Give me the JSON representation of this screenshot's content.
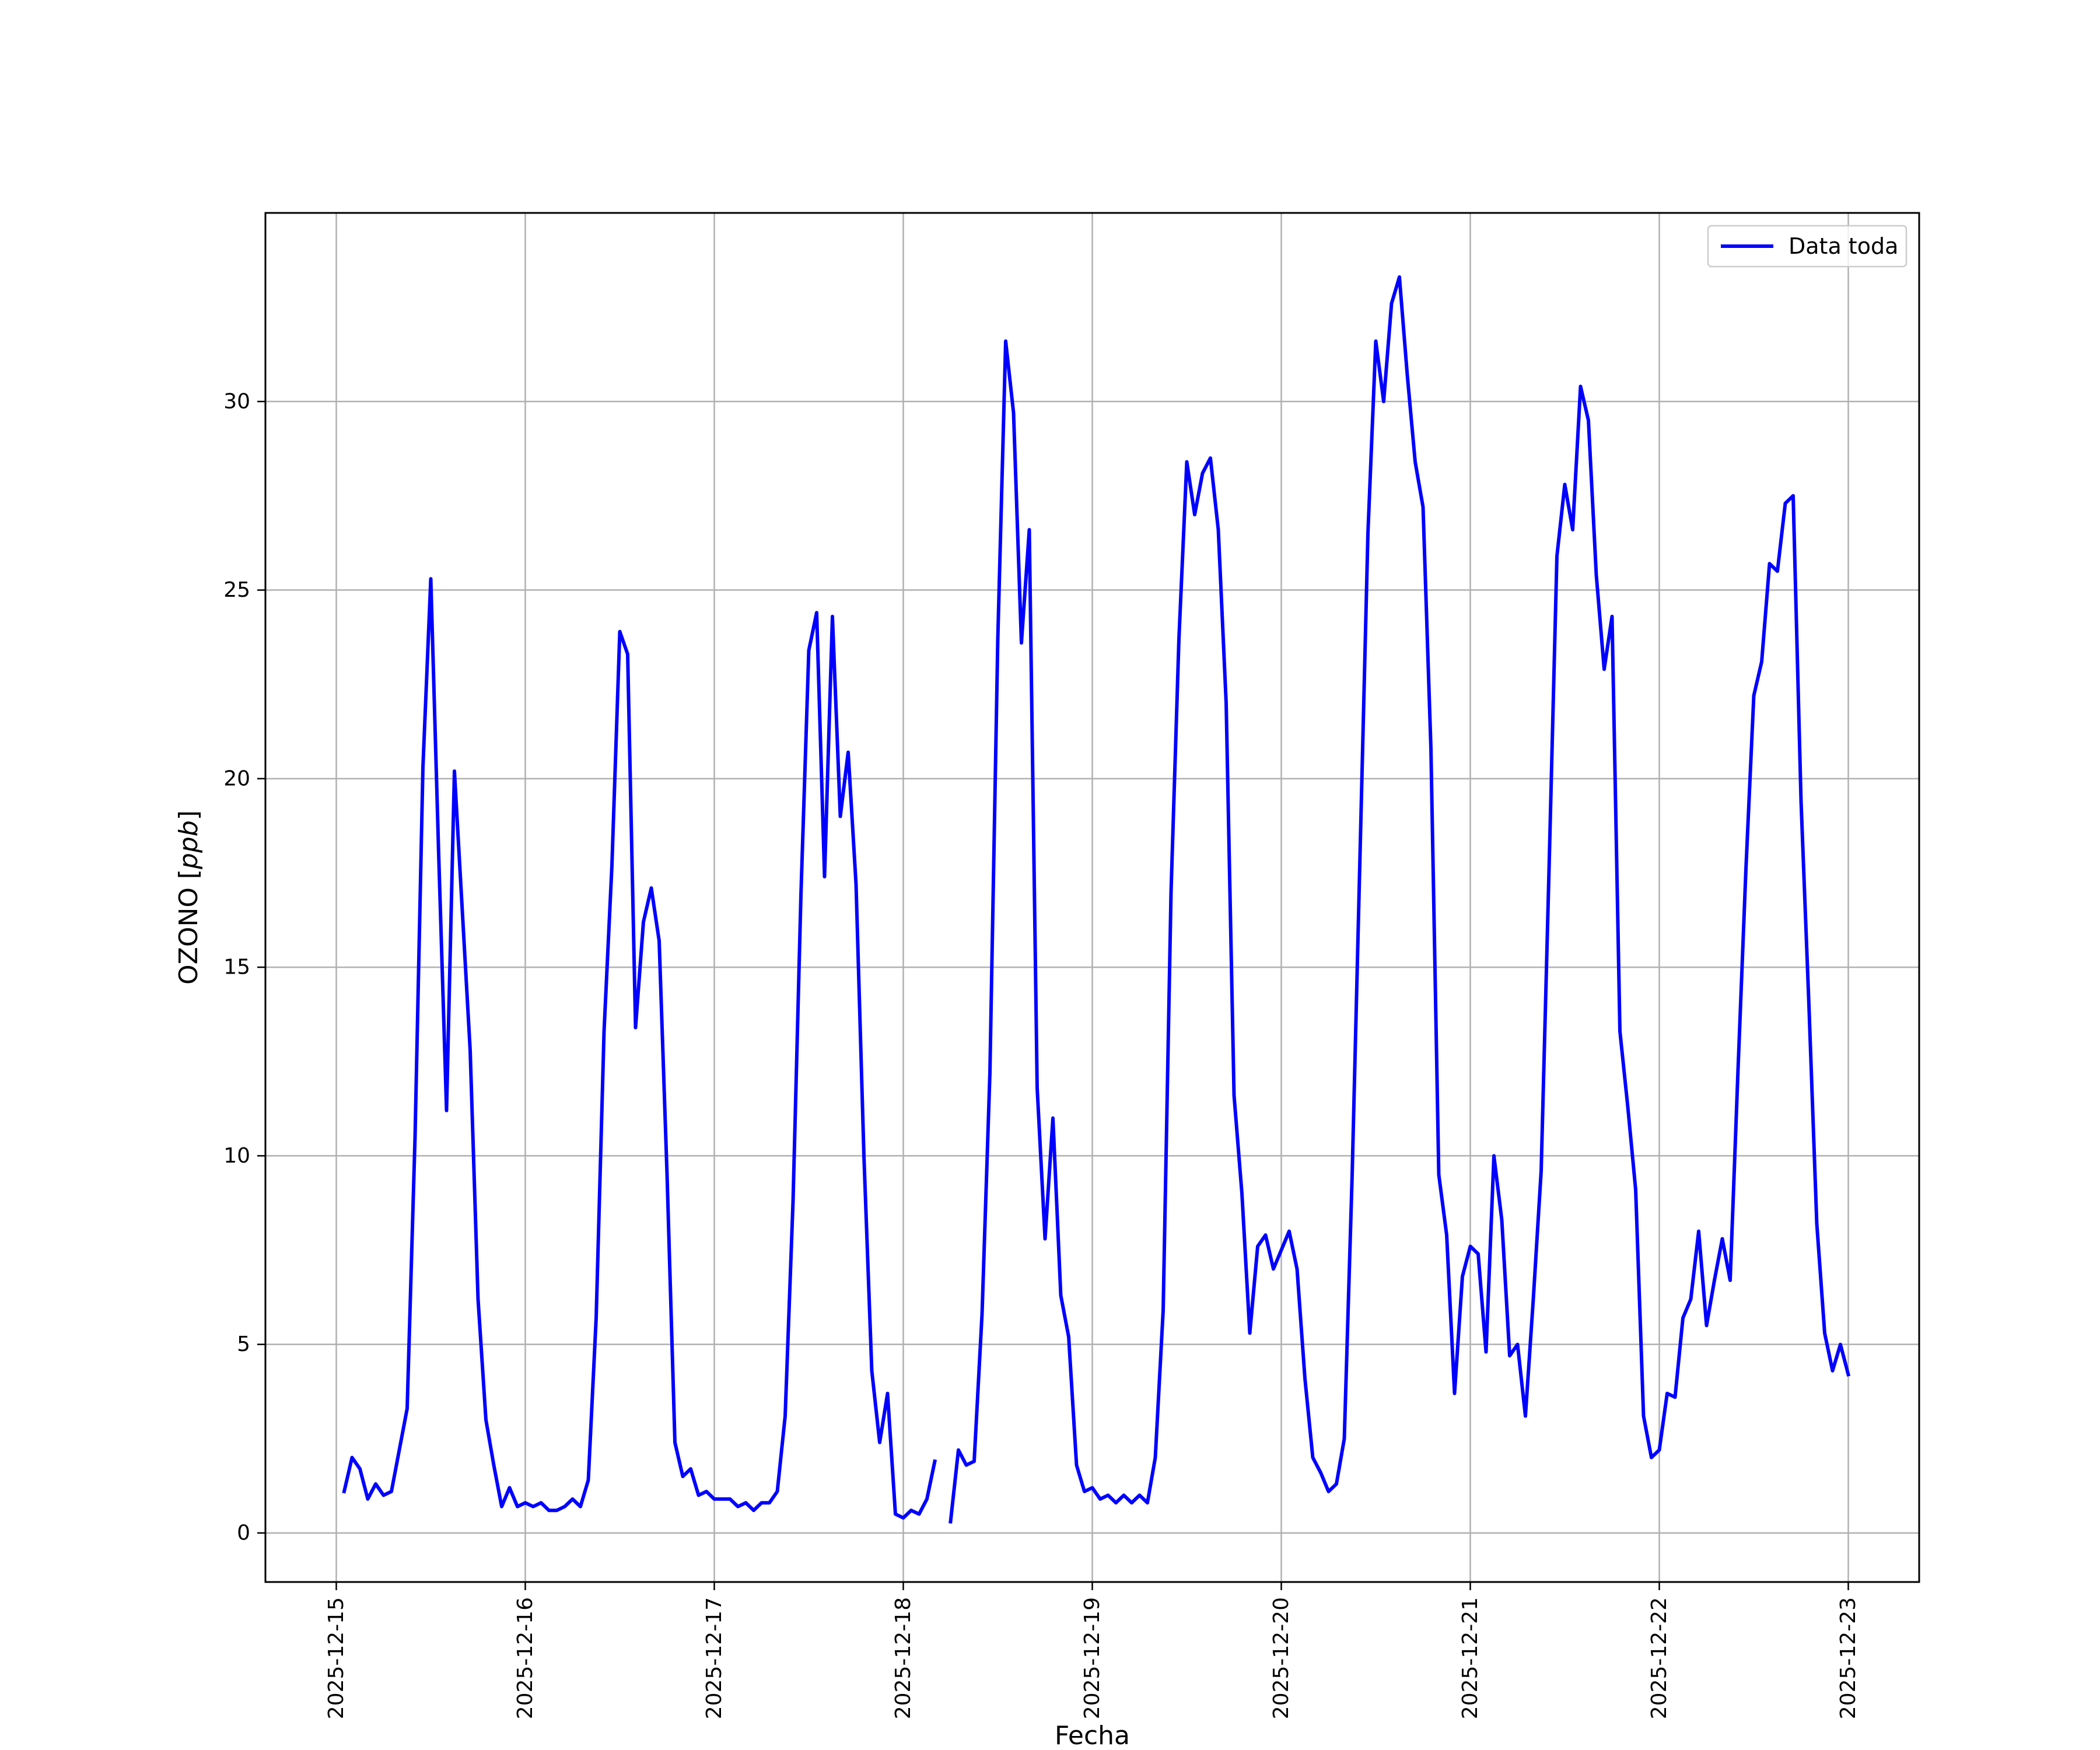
{
  "chart_data": {
    "type": "line",
    "title": "",
    "xlabel": "Fecha",
    "ylabel": "OZONO [ppb]",
    "ylabel_parts": {
      "main": "OZONO [",
      "unit": "ppb",
      "close": "]"
    },
    "xlim": [
      "2025-12-14 15:00",
      "2025-12-23 09:00"
    ],
    "ylim": [
      -1.3,
      35
    ],
    "grid": true,
    "legend_position": "top-right",
    "line_color": "#0000ff",
    "x_ticks": [
      "2025-12-15",
      "2025-12-16",
      "2025-12-17",
      "2025-12-18",
      "2025-12-19",
      "2025-12-20",
      "2025-12-21",
      "2025-12-22",
      "2025-12-23"
    ],
    "y_ticks": [
      0,
      5,
      10,
      15,
      20,
      25,
      30
    ],
    "series": [
      {
        "name": "Data toda",
        "segments": [
          {
            "x": [
              "2025-12-15 01:00",
              "2025-12-15 02:00",
              "2025-12-15 03:00",
              "2025-12-15 04:00",
              "2025-12-15 05:00",
              "2025-12-15 06:00",
              "2025-12-15 07:00",
              "2025-12-15 08:00",
              "2025-12-15 09:00",
              "2025-12-15 10:00",
              "2025-12-15 11:00",
              "2025-12-15 12:00",
              "2025-12-15 13:00",
              "2025-12-15 14:00",
              "2025-12-15 15:00",
              "2025-12-15 16:00",
              "2025-12-15 17:00",
              "2025-12-15 18:00",
              "2025-12-15 19:00",
              "2025-12-15 20:00",
              "2025-12-15 21:00",
              "2025-12-15 22:00",
              "2025-12-15 23:00",
              "2025-12-16 00:00",
              "2025-12-16 01:00",
              "2025-12-16 02:00",
              "2025-12-16 03:00",
              "2025-12-16 04:00",
              "2025-12-16 05:00",
              "2025-12-16 06:00",
              "2025-12-16 07:00",
              "2025-12-16 08:00",
              "2025-12-16 09:00",
              "2025-12-16 10:00",
              "2025-12-16 11:00",
              "2025-12-16 12:00",
              "2025-12-16 13:00",
              "2025-12-16 14:00",
              "2025-12-16 15:00",
              "2025-12-16 16:00",
              "2025-12-16 17:00",
              "2025-12-16 18:00",
              "2025-12-16 19:00",
              "2025-12-16 20:00",
              "2025-12-16 21:00",
              "2025-12-16 22:00",
              "2025-12-16 23:00",
              "2025-12-17 00:00",
              "2025-12-17 01:00",
              "2025-12-17 02:00",
              "2025-12-17 03:00",
              "2025-12-17 04:00",
              "2025-12-17 05:00",
              "2025-12-17 06:00",
              "2025-12-17 07:00",
              "2025-12-17 08:00",
              "2025-12-17 09:00",
              "2025-12-17 10:00",
              "2025-12-17 11:00",
              "2025-12-17 12:00",
              "2025-12-17 13:00",
              "2025-12-17 14:00",
              "2025-12-17 15:00",
              "2025-12-17 16:00",
              "2025-12-17 17:00",
              "2025-12-17 18:00",
              "2025-12-17 19:00",
              "2025-12-17 20:00",
              "2025-12-17 21:00",
              "2025-12-17 22:00",
              "2025-12-17 23:00",
              "2025-12-18 00:00",
              "2025-12-18 01:00",
              "2025-12-18 02:00",
              "2025-12-18 03:00",
              "2025-12-18 04:00"
            ],
            "y": [
              1.1,
              2.0,
              1.7,
              0.9,
              1.3,
              1.0,
              1.1,
              2.2,
              3.3,
              10.5,
              20.3,
              25.3,
              18.0,
              11.2,
              20.2,
              16.5,
              12.8,
              6.2,
              3.0,
              1.8,
              0.7,
              1.2,
              0.7,
              0.8,
              0.7,
              0.8,
              0.6,
              0.6,
              0.7,
              0.9,
              0.7,
              1.4,
              5.7,
              13.3,
              17.7,
              23.9,
              23.3,
              13.4,
              16.2,
              17.1,
              15.7,
              9.5,
              2.4,
              1.5,
              1.7,
              1.0,
              1.1,
              0.9,
              0.9,
              0.9,
              0.7,
              0.8,
              0.6,
              0.8,
              0.8,
              1.1,
              3.1,
              8.8,
              16.9,
              23.4,
              24.4,
              17.4,
              24.3,
              19.0,
              20.7,
              17.2,
              10.0,
              4.3,
              2.4,
              3.7,
              0.5,
              0.4,
              0.6,
              0.5,
              0.9,
              1.9
            ]
          },
          {
            "x": [
              "2025-12-18 06:00",
              "2025-12-18 07:00",
              "2025-12-18 08:00",
              "2025-12-18 09:00",
              "2025-12-18 10:00",
              "2025-12-18 11:00",
              "2025-12-18 12:00",
              "2025-12-18 13:00",
              "2025-12-18 14:00",
              "2025-12-18 15:00",
              "2025-12-18 16:00",
              "2025-12-18 17:00",
              "2025-12-18 18:00",
              "2025-12-18 19:00",
              "2025-12-18 20:00",
              "2025-12-18 21:00",
              "2025-12-18 22:00",
              "2025-12-18 23:00",
              "2025-12-19 00:00",
              "2025-12-19 01:00",
              "2025-12-19 02:00",
              "2025-12-19 03:00",
              "2025-12-19 04:00",
              "2025-12-19 05:00",
              "2025-12-19 06:00",
              "2025-12-19 07:00",
              "2025-12-19 08:00",
              "2025-12-19 09:00",
              "2025-12-19 10:00",
              "2025-12-19 11:00",
              "2025-12-19 12:00",
              "2025-12-19 13:00",
              "2025-12-19 14:00",
              "2025-12-19 15:00",
              "2025-12-19 16:00",
              "2025-12-19 17:00",
              "2025-12-19 18:00",
              "2025-12-19 19:00",
              "2025-12-19 20:00",
              "2025-12-19 21:00",
              "2025-12-19 22:00",
              "2025-12-19 23:00",
              "2025-12-20 00:00",
              "2025-12-20 01:00",
              "2025-12-20 02:00",
              "2025-12-20 03:00",
              "2025-12-20 04:00",
              "2025-12-20 05:00",
              "2025-12-20 06:00",
              "2025-12-20 07:00",
              "2025-12-20 08:00",
              "2025-12-20 09:00",
              "2025-12-20 10:00",
              "2025-12-20 11:00",
              "2025-12-20 12:00",
              "2025-12-20 13:00",
              "2025-12-20 14:00",
              "2025-12-20 15:00",
              "2025-12-20 16:00",
              "2025-12-20 17:00",
              "2025-12-20 18:00",
              "2025-12-20 19:00",
              "2025-12-20 20:00",
              "2025-12-20 21:00",
              "2025-12-20 22:00",
              "2025-12-20 23:00",
              "2025-12-21 00:00",
              "2025-12-21 01:00",
              "2025-12-21 02:00",
              "2025-12-21 03:00",
              "2025-12-21 04:00",
              "2025-12-21 05:00",
              "2025-12-21 06:00",
              "2025-12-21 07:00",
              "2025-12-21 08:00",
              "2025-12-21 09:00",
              "2025-12-21 10:00",
              "2025-12-21 11:00",
              "2025-12-21 12:00",
              "2025-12-21 13:00",
              "2025-12-21 14:00",
              "2025-12-21 15:00",
              "2025-12-21 16:00",
              "2025-12-21 17:00",
              "2025-12-21 18:00",
              "2025-12-21 19:00",
              "2025-12-21 20:00",
              "2025-12-21 21:00",
              "2025-12-21 22:00",
              "2025-12-21 23:00",
              "2025-12-22 00:00",
              "2025-12-22 01:00",
              "2025-12-22 02:00",
              "2025-12-22 03:00",
              "2025-12-22 04:00",
              "2025-12-22 05:00",
              "2025-12-22 06:00",
              "2025-12-22 07:00",
              "2025-12-22 08:00",
              "2025-12-22 09:00",
              "2025-12-22 10:00",
              "2025-12-22 11:00",
              "2025-12-22 12:00",
              "2025-12-22 13:00",
              "2025-12-22 14:00",
              "2025-12-22 15:00",
              "2025-12-22 16:00",
              "2025-12-22 17:00",
              "2025-12-22 18:00",
              "2025-12-22 19:00",
              "2025-12-22 20:00",
              "2025-12-22 21:00",
              "2025-12-22 22:00",
              "2025-12-22 23:00",
              "2025-12-23 00:00"
            ],
            "y": [
              0.3,
              2.2,
              1.8,
              1.9,
              5.8,
              12.2,
              23.7,
              31.6,
              29.7,
              23.6,
              26.6,
              11.8,
              7.8,
              11.0,
              6.3,
              5.2,
              1.8,
              1.1,
              1.2,
              0.9,
              1.0,
              0.8,
              1.0,
              0.8,
              1.0,
              0.8,
              2.0,
              5.9,
              17.0,
              23.7,
              28.4,
              27.0,
              28.1,
              28.5,
              26.6,
              22.0,
              11.6,
              9.0,
              5.3,
              7.6,
              7.9,
              7.0,
              7.5,
              8.0,
              7.0,
              4.1,
              2.0,
              1.6,
              1.1,
              1.3,
              2.5,
              9.5,
              18.0,
              26.5,
              31.6,
              30.0,
              32.6,
              33.3,
              30.7,
              28.4,
              27.2,
              20.8,
              9.5,
              7.9,
              3.7,
              6.8,
              7.6,
              7.4,
              4.8,
              10.0,
              8.3,
              4.7,
              5.0,
              3.1,
              6.2,
              9.6,
              17.6,
              25.9,
              27.8,
              26.6,
              30.4,
              29.5,
              25.4,
              22.9,
              24.3,
              13.3,
              11.3,
              9.1,
              3.1,
              2.0,
              2.2,
              3.7,
              3.6,
              5.7,
              6.2,
              8.0,
              5.5,
              6.7,
              7.8,
              6.7,
              12.3,
              17.6,
              22.2,
              23.1,
              25.7,
              25.5,
              27.3,
              27.5,
              19.4,
              14.0,
              8.2,
              5.3,
              4.3,
              5.0,
              4.2
            ]
          }
        ]
      }
    ]
  }
}
